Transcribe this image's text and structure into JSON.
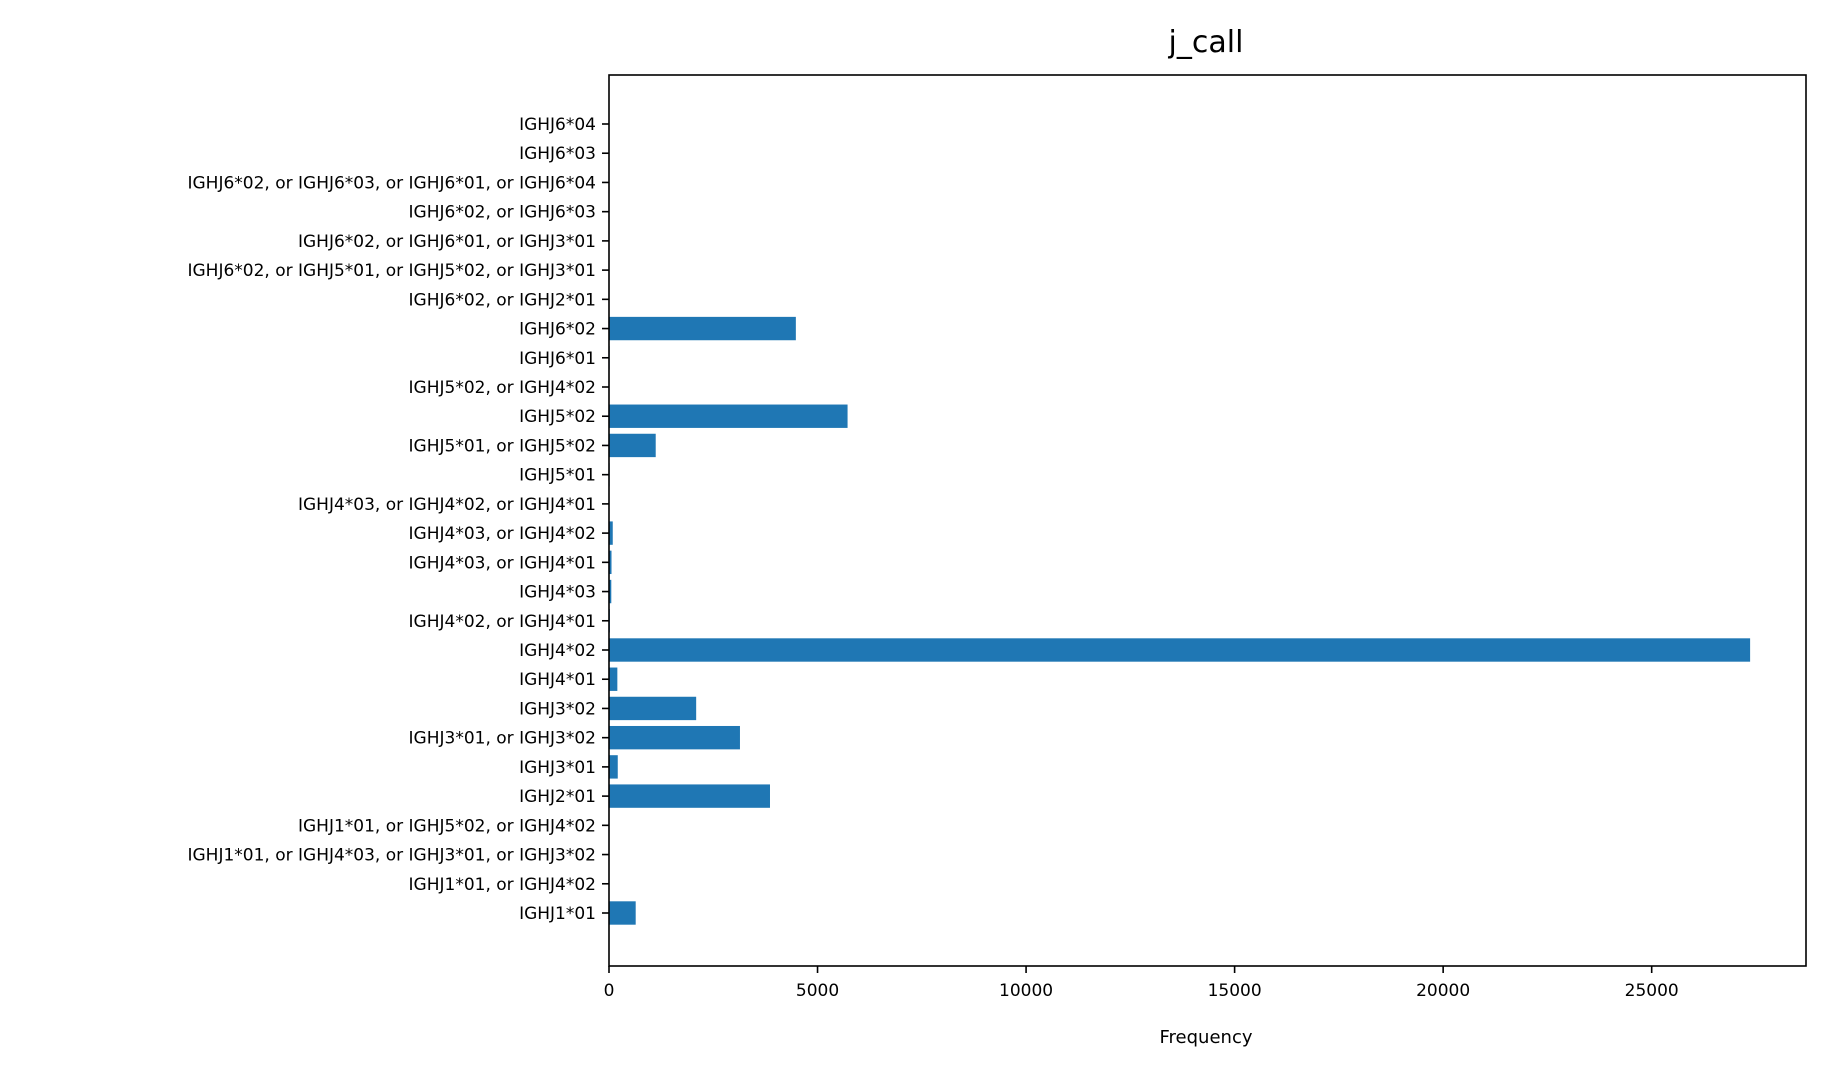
{
  "chart_data": {
    "type": "bar",
    "orientation": "horizontal",
    "title": "j_call",
    "xlabel": "Frequency",
    "ylabel": "",
    "xlim": [
      0,
      28700
    ],
    "xticks": [
      0,
      5000,
      10000,
      15000,
      20000,
      25000
    ],
    "grid": false,
    "bar_color": "#1f77b4",
    "categories": [
      "IGHJ1*01",
      "IGHJ1*01, or IGHJ4*02",
      "IGHJ1*01, or IGHJ4*03, or IGHJ3*01, or IGHJ3*02",
      "IGHJ1*01, or IGHJ5*02, or IGHJ4*02",
      "IGHJ2*01",
      "IGHJ3*01",
      "IGHJ3*01, or IGHJ3*02",
      "IGHJ3*02",
      "IGHJ4*01",
      "IGHJ4*02",
      "IGHJ4*02, or IGHJ4*01",
      "IGHJ4*03",
      "IGHJ4*03, or IGHJ4*01",
      "IGHJ4*03, or IGHJ4*02",
      "IGHJ4*03, or IGHJ4*02, or IGHJ4*01",
      "IGHJ5*01",
      "IGHJ5*01, or IGHJ5*02",
      "IGHJ5*02",
      "IGHJ5*02, or IGHJ4*02",
      "IGHJ6*01",
      "IGHJ6*02",
      "IGHJ6*02, or IGHJ2*01",
      "IGHJ6*02, or IGHJ5*01, or IGHJ5*02, or IGHJ3*01",
      "IGHJ6*02, or IGHJ6*01, or IGHJ3*01",
      "IGHJ6*02, or IGHJ6*03",
      "IGHJ6*02, or IGHJ6*03, or IGHJ6*01, or IGHJ6*04",
      "IGHJ6*03",
      "IGHJ6*04"
    ],
    "values": [
      640,
      2,
      1,
      1,
      3860,
      210,
      3140,
      2090,
      200,
      27360,
      20,
      55,
      60,
      90,
      3,
      15,
      1120,
      5720,
      2,
      15,
      4480,
      2,
      1,
      1,
      5,
      1,
      10,
      5
    ]
  }
}
